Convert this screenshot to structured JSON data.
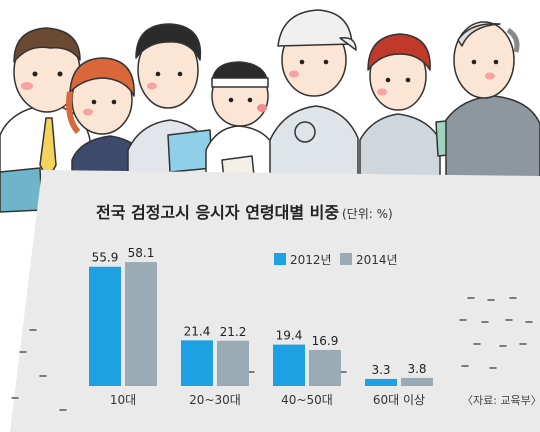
{
  "chart_data": {
    "type": "bar",
    "title": "전국 검정고시 응시자 연령대별 비중",
    "unit": "(단위: %)",
    "categories": [
      "10대",
      "20~30대",
      "40~50대",
      "60대 이상"
    ],
    "series": [
      {
        "name": "2012년",
        "color": "#1da1e2",
        "values": [
          55.9,
          21.4,
          19.4,
          3.3
        ],
        "labels": [
          "55.9",
          "21.4",
          "19.4",
          "3.3"
        ]
      },
      {
        "name": "2014년",
        "color": "#9aabb6",
        "values": [
          58.1,
          21.2,
          16.9,
          3.8
        ],
        "labels": [
          "58.1",
          "21.2",
          "16.9",
          "3.8"
        ]
      }
    ],
    "ylim": [
      0,
      60
    ],
    "legend_position": "top-right",
    "grid": false
  },
  "source": "〈자료: 교육부〉",
  "colors": {
    "panel": "#eaeaea",
    "text": "#222222"
  }
}
